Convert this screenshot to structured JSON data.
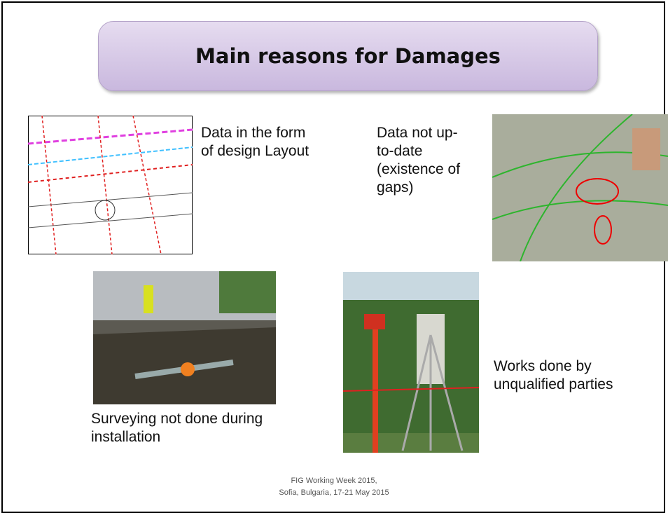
{
  "title": "Main reasons for Damages",
  "items": [
    {
      "lines": [
        "Data in the form",
        "of design Layout"
      ]
    },
    {
      "lines": [
        "Data not up-",
        "to-date",
        "(existence of",
        "gaps)"
      ]
    },
    {
      "lines": [
        "Surveying not done during",
        "installation"
      ]
    },
    {
      "lines": [
        "Works done by",
        "unqualified parties"
      ]
    }
  ],
  "footer": [
    "FIG Working Week 2015,",
    "Sofia, Bulgaria, 17-21 May 2015"
  ]
}
